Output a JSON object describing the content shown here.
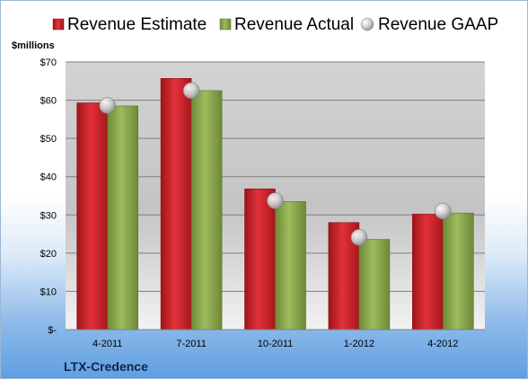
{
  "chart_data": {
    "type": "bar",
    "title": "",
    "company": "LTX-Credence",
    "ylabel": "$millions",
    "xlabel": "",
    "categories": [
      "4-2011",
      "7-2011",
      "10-2011",
      "1-2012",
      "4-2012"
    ],
    "series": [
      {
        "name": "Revenue Estimate",
        "kind": "bar",
        "values": [
          59.3,
          65.7,
          36.8,
          28.0,
          30.2
        ]
      },
      {
        "name": "Revenue Actual",
        "kind": "bar",
        "values": [
          58.5,
          62.5,
          33.5,
          23.6,
          30.5
        ]
      },
      {
        "name": "Revenue GAAP",
        "kind": "marker",
        "values": [
          58.6,
          62.5,
          33.7,
          24.1,
          31.0
        ]
      }
    ],
    "ylim": [
      0,
      70
    ],
    "ytick_values": [
      0,
      10,
      20,
      30,
      40,
      50,
      60,
      70
    ],
    "ytick_labels": [
      "$-",
      "$10",
      "$20",
      "$30",
      "$40",
      "$50",
      "$60",
      "$70"
    ],
    "grid": true,
    "legend_position": "top",
    "colors": {
      "estimate": "#cc2229",
      "actual": "#8aa84e",
      "gaap": "#c9c9c9"
    }
  }
}
